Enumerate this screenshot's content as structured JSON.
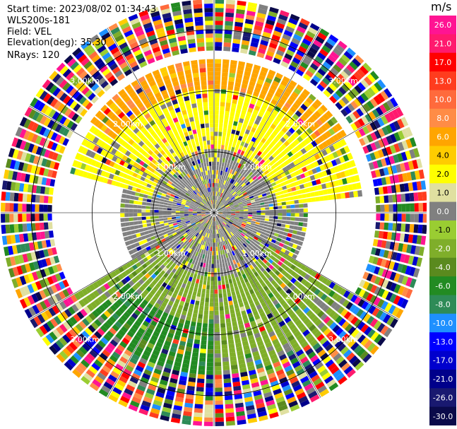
{
  "header": {
    "start_time": "Start time: 2023/08/02 01:34:43",
    "instrument": "WLS200s-181",
    "field": "Field: VEL",
    "elevation": "Elevation(deg): 35.30",
    "nrays": "NRays: 120"
  },
  "chart_data": {
    "type": "heatmap",
    "projection": "polar PPI",
    "nrays": 120,
    "range_rings_km": [
      1.0,
      2.0,
      3.0
    ],
    "range_ring_labels": [
      "1.00km",
      "2.00km",
      "3.00km"
    ],
    "max_range_km": 3.5,
    "colorbar": {
      "title": "m/s",
      "tick_labels": [
        "26.0",
        "21.0",
        "17.0",
        "13.0",
        "10.0",
        "8.0",
        "6.0",
        "4.0",
        "2.0",
        "1.0",
        "0.0",
        "-1.0",
        "-2.0",
        "-4.0",
        "-6.0",
        "-8.0",
        "-10.0",
        "-13.0",
        "-17.0",
        "-21.0",
        "-26.0",
        "-30.0"
      ],
      "colors": [
        "#ff1493",
        "#ff1a6e",
        "#ff0000",
        "#ff3c1e",
        "#ff6a3c",
        "#ff8c46",
        "#ffa500",
        "#ffcc00",
        "#ffff00",
        "#e0e0a0",
        "#808080",
        "#9acd32",
        "#7fae2a",
        "#5a8a1e",
        "#228b22",
        "#2e8b57",
        "#1e90ff",
        "#0000ff",
        "#0000cd",
        "#00008b",
        "#191970",
        "#0a0a4a"
      ]
    },
    "regions": [
      {
        "azimuth_from_deg": 285,
        "azimuth_to_deg": 85,
        "range_from_km": 1.0,
        "range_to_km": 2.4,
        "value_ms": 2.0
      },
      {
        "azimuth_from_deg": 305,
        "azimuth_to_deg": 60,
        "range_from_km": 2.0,
        "range_to_km": 2.5,
        "value_ms": 6.0
      },
      {
        "azimuth_from_deg": 0,
        "azimuth_to_deg": 360,
        "range_from_km": 0.0,
        "range_to_km": 1.0,
        "value_ms": 0.0
      },
      {
        "azimuth_from_deg": 85,
        "azimuth_to_deg": 120,
        "range_from_km": 1.0,
        "range_to_km": 1.5,
        "value_ms": 0.0
      },
      {
        "azimuth_from_deg": 240,
        "azimuth_to_deg": 285,
        "range_from_km": 1.0,
        "range_to_km": 1.5,
        "value_ms": 0.0
      },
      {
        "azimuth_from_deg": 120,
        "azimuth_to_deg": 240,
        "range_from_km": 1.0,
        "range_to_km": 2.8,
        "value_ms": -2.0
      },
      {
        "azimuth_from_deg": 180,
        "azimuth_to_deg": 230,
        "range_from_km": 1.8,
        "range_to_km": 2.8,
        "value_ms": -6.0
      },
      {
        "azimuth_from_deg": 0,
        "azimuth_to_deg": 360,
        "range_from_km": 2.6,
        "range_to_km": 3.5,
        "value_ms": "noise"
      }
    ]
  }
}
